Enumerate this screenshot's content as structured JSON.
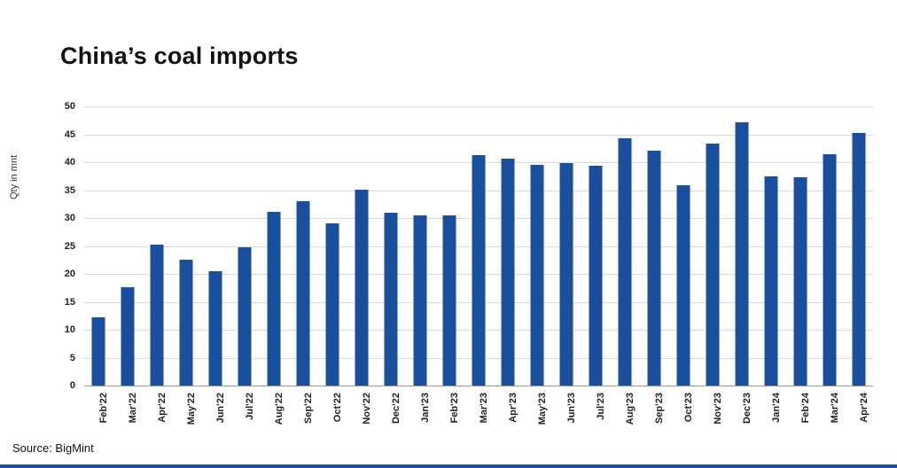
{
  "title": "China’s coal imports",
  "source": "Source: BigMint",
  "colors": {
    "bar": "#1a4f9e",
    "gridline": "#d9d9d9",
    "bottom_rule": "#1a4f9e"
  },
  "chart_data": {
    "type": "bar",
    "title": "China’s coal imports",
    "xlabel": "",
    "ylabel": "Qty in mnt",
    "ylim": [
      0,
      50
    ],
    "ytick_step": 5,
    "grid": true,
    "legend_position": "none",
    "categories": [
      "Feb'22",
      "Mar'22",
      "Apr'22",
      "May'22",
      "Jun'22",
      "Jul'22",
      "Aug'22",
      "Sep'22",
      "Oct'22",
      "Nov'22",
      "Dec'22",
      "Jan'23",
      "Feb'23",
      "Mar'23",
      "Apr'23",
      "May'23",
      "Jun'23",
      "Jul'23",
      "Aug'23",
      "Sep'23",
      "Oct'23",
      "Nov'23",
      "Dec'23",
      "Jan'24",
      "Feb'24",
      "Mar'24",
      "Apr'24"
    ],
    "values": [
      12.3,
      17.7,
      25.3,
      22.5,
      20.5,
      24.7,
      31.1,
      33.0,
      29.0,
      35.1,
      31.0,
      30.4,
      30.4,
      41.2,
      40.6,
      39.6,
      39.9,
      39.3,
      44.3,
      42.1,
      35.9,
      43.4,
      47.2,
      37.4,
      37.3,
      41.5,
      45.2
    ]
  }
}
